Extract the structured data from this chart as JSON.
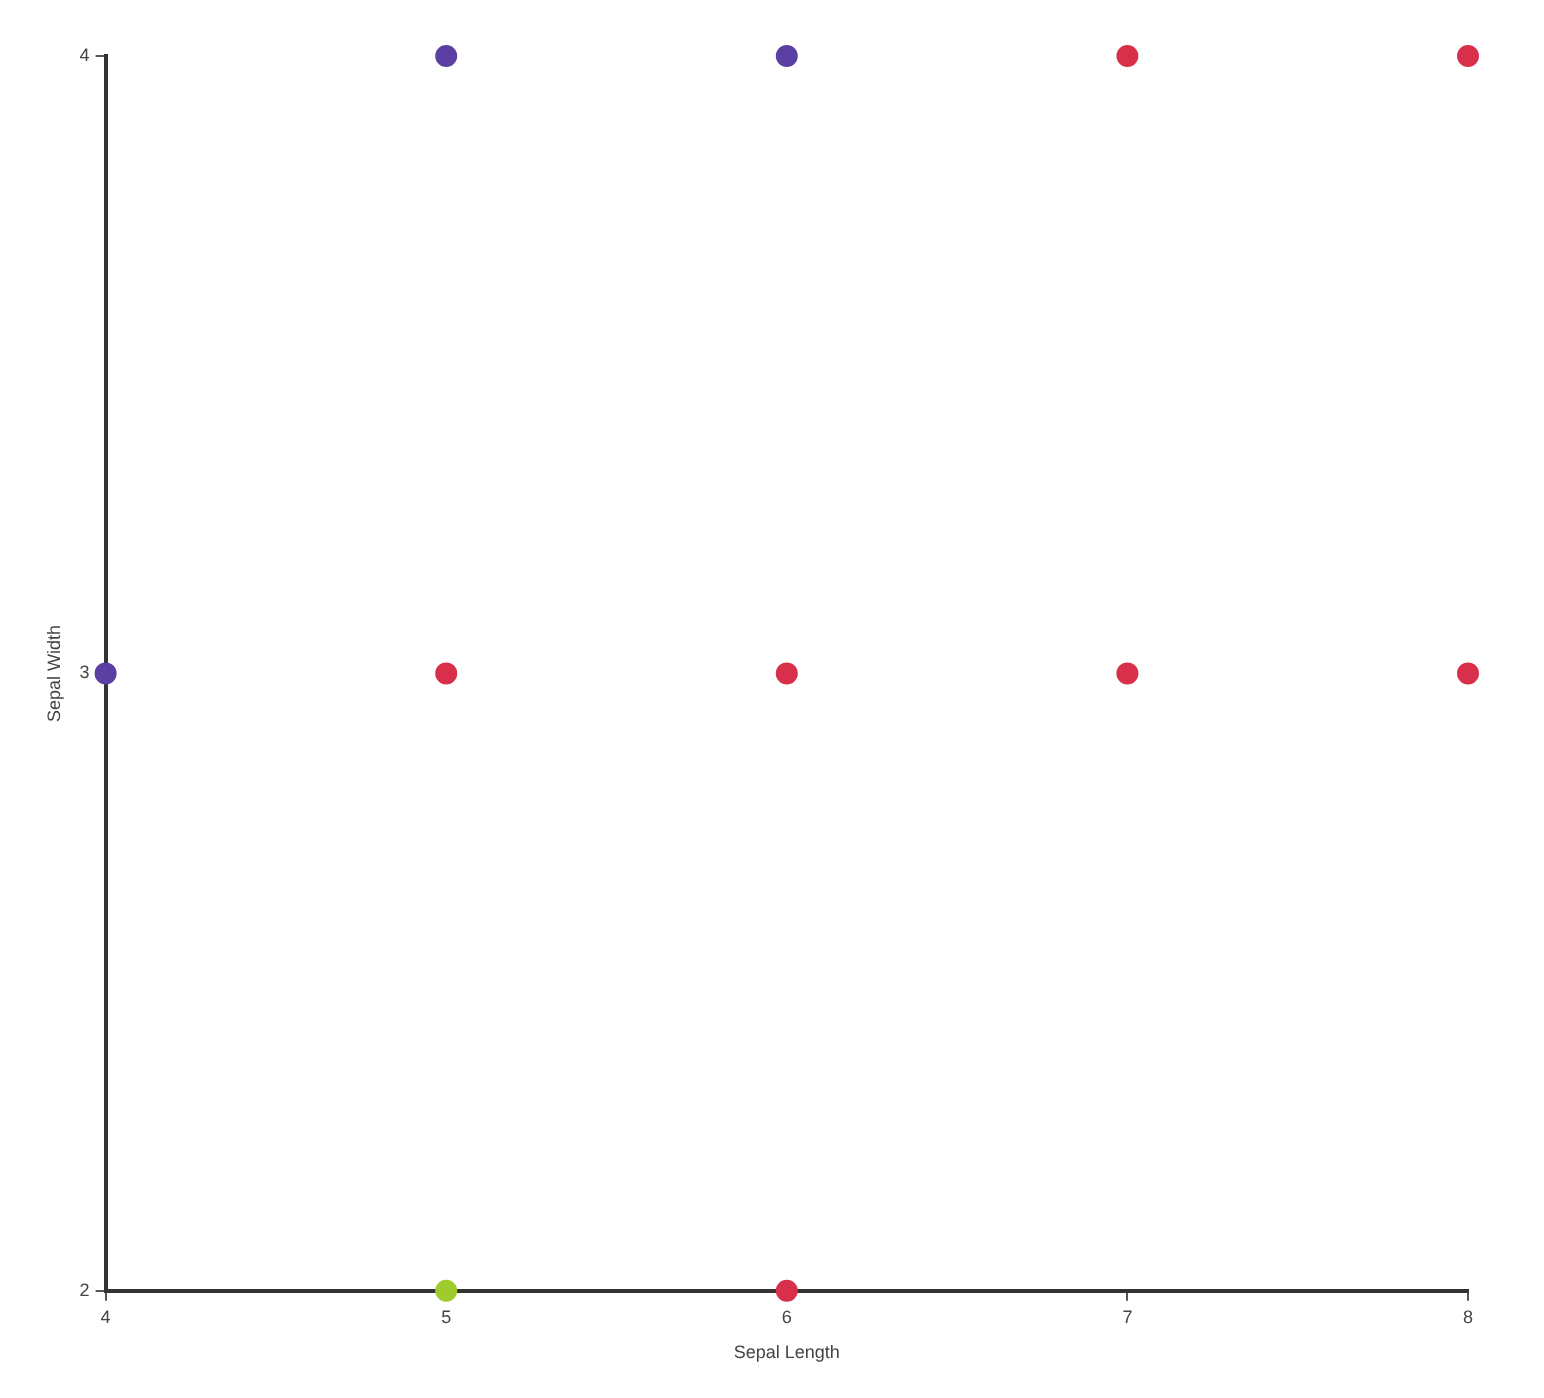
{
  "chart_data": {
    "type": "scatter",
    "xlabel": "Sepal Length",
    "ylabel": "Sepal Width",
    "xlim": [
      4,
      8
    ],
    "ylim": [
      2,
      4
    ],
    "xticks": [
      4,
      5,
      6,
      7,
      8
    ],
    "yticks": [
      2,
      3,
      4
    ],
    "grid": false,
    "legend": false,
    "marker": "circle",
    "series": [
      {
        "color": "#5b3fa3",
        "x": [
          4,
          5,
          6
        ],
        "values": [
          3,
          4,
          4
        ]
      },
      {
        "color": "#d8304a",
        "x": [
          7,
          8,
          5,
          6,
          7,
          8,
          6
        ],
        "values": [
          4,
          4,
          3,
          3,
          3,
          3,
          2
        ]
      },
      {
        "color": "#9fcc2c",
        "x": [
          5
        ],
        "values": [
          2
        ]
      }
    ]
  }
}
